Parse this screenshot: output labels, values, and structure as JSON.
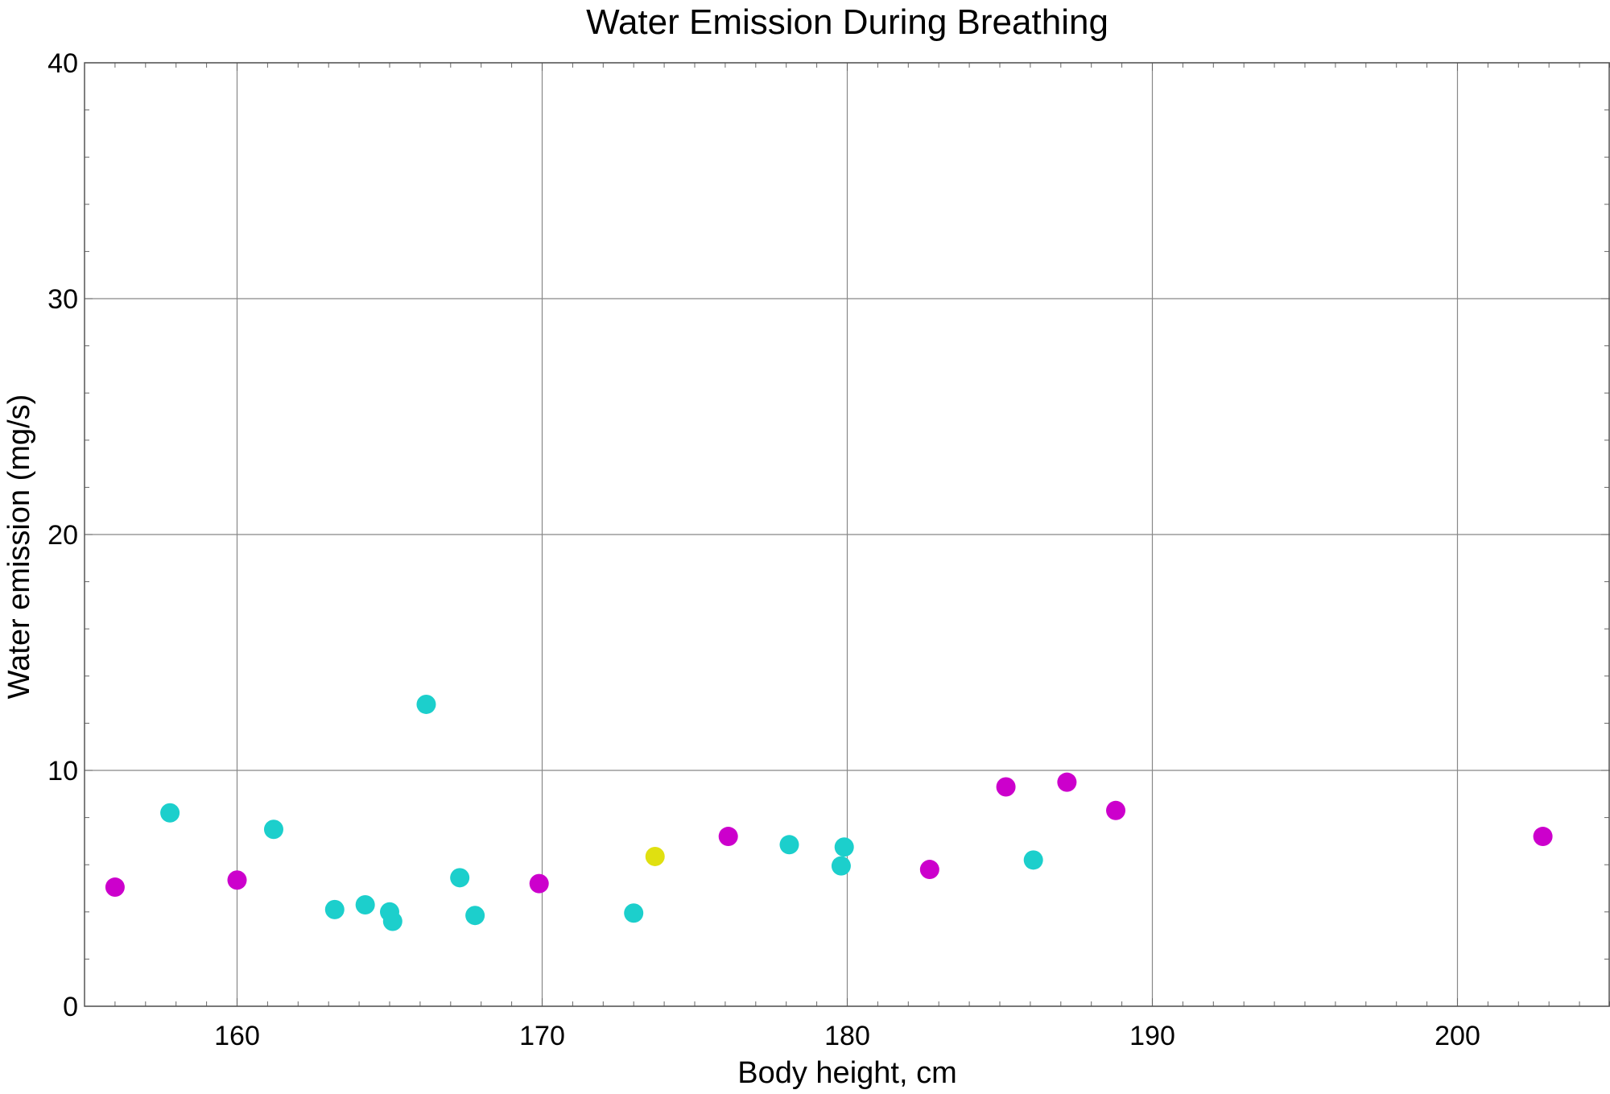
{
  "chart_data": {
    "type": "scatter",
    "title": "Water Emission During Breathing",
    "xlabel": "Body height,  cm",
    "ylabel": "Water emission (mg/s)",
    "xlim": [
      155,
      205
    ],
    "ylim": [
      0,
      40
    ],
    "x_ticks": [
      160,
      170,
      180,
      190,
      200
    ],
    "y_ticks": [
      0,
      10,
      20,
      30,
      40
    ],
    "x_tick_labels": [
      "160",
      "170",
      "180",
      "190",
      "200"
    ],
    "y_tick_labels": [
      "0",
      "10",
      "20",
      "30",
      "40"
    ],
    "grid": true,
    "colors": {
      "cyan": "#1ccfcc",
      "magenta": "#cc00cc",
      "yellow": "#e0e010",
      "grid": "#888888",
      "frame": "#555555"
    },
    "series": [
      {
        "color": "#1ccfcc",
        "points": [
          [
            157.8,
            8.2
          ],
          [
            161.2,
            7.5
          ],
          [
            163.2,
            4.1
          ],
          [
            164.2,
            4.3
          ],
          [
            165.0,
            4.0
          ],
          [
            165.1,
            3.6
          ],
          [
            166.2,
            12.8
          ],
          [
            167.3,
            5.45
          ],
          [
            167.8,
            3.85
          ],
          [
            173.0,
            3.95
          ],
          [
            178.1,
            6.85
          ],
          [
            179.8,
            5.95
          ],
          [
            179.9,
            6.75
          ],
          [
            186.1,
            6.2
          ]
        ]
      },
      {
        "color": "#cc00cc",
        "points": [
          [
            156.0,
            5.05
          ],
          [
            160.0,
            5.35
          ],
          [
            169.9,
            5.2
          ],
          [
            176.1,
            7.2
          ],
          [
            182.7,
            5.8
          ],
          [
            185.2,
            9.3
          ],
          [
            187.2,
            9.5
          ],
          [
            188.8,
            8.3
          ],
          [
            202.8,
            7.2
          ]
        ]
      },
      {
        "color": "#e0e010",
        "points": [
          [
            173.7,
            6.35
          ]
        ]
      }
    ]
  }
}
